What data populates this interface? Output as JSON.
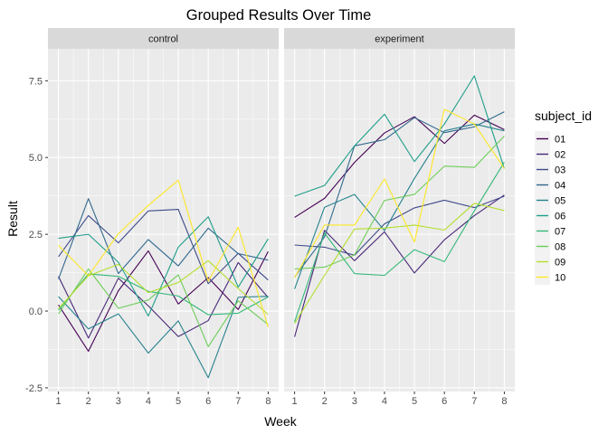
{
  "chart_data": {
    "type": "line",
    "title": "Grouped Results Over Time",
    "xlabel": "Week",
    "ylabel": "Result",
    "x": [
      1,
      2,
      3,
      4,
      5,
      6,
      7,
      8
    ],
    "xlim": [
      0.65,
      8.35
    ],
    "ylim": [
      -2.62,
      8.54
    ],
    "yticks": [
      -2.5,
      0.0,
      2.5,
      5.0,
      7.5
    ],
    "ytick_labels": [
      "-2.5",
      "0.0",
      "2.5",
      "5.0",
      "7.5"
    ],
    "xtick_labels": [
      "1",
      "2",
      "3",
      "4",
      "5",
      "6",
      "7",
      "8"
    ],
    "grid": true,
    "legend": {
      "title": "subject_id",
      "placement": "right",
      "entries": [
        "01",
        "02",
        "03",
        "04",
        "05",
        "06",
        "07",
        "08",
        "09",
        "10"
      ],
      "colors": [
        "#440154",
        "#482878",
        "#3E4A89",
        "#31688E",
        "#26828E",
        "#1F9E89",
        "#35B779",
        "#6DCD59",
        "#B4DE2C",
        "#FDE725"
      ]
    },
    "panels": [
      {
        "label": "control",
        "series": [
          {
            "name": "01",
            "values": [
              0.2,
              -1.31,
              0.66,
              1.96,
              0.23,
              1.09,
              0.05,
              1.94
            ]
          },
          {
            "name": "02",
            "values": [
              1.13,
              -0.88,
              1.07,
              0.17,
              -0.83,
              -0.31,
              1.58,
              0.44
            ]
          },
          {
            "name": "03",
            "values": [
              1.77,
              3.11,
              2.22,
              3.26,
              3.31,
              0.89,
              1.88,
              1.01
            ]
          },
          {
            "name": "04",
            "values": [
              1.04,
              3.66,
              1.22,
              2.33,
              1.47,
              2.7,
              1.87,
              1.66
            ]
          },
          {
            "name": "05",
            "values": [
              0.47,
              -0.58,
              -0.09,
              -1.37,
              -0.32,
              -2.17,
              0.45,
              0.48
            ]
          },
          {
            "name": "06",
            "values": [
              2.37,
              2.5,
              1.59,
              -0.16,
              2.08,
              3.07,
              0.78,
              2.35
            ]
          },
          {
            "name": "07",
            "values": [
              0.03,
              1.21,
              1.13,
              0.64,
              0.49,
              -0.12,
              -0.07,
              0.46
            ]
          },
          {
            "name": "08",
            "values": [
              -0.09,
              1.37,
              0.09,
              0.36,
              1.18,
              -1.16,
              0.33,
              -0.44
            ]
          },
          {
            "name": "09",
            "values": [
              0.08,
              1.15,
              1.52,
              0.6,
              0.93,
              1.64,
              0.73,
              -0.11
            ]
          },
          {
            "name": "10",
            "values": [
              2.14,
              1.15,
              2.52,
              3.44,
              4.26,
              0.97,
              2.73,
              -0.53
            ]
          }
        ]
      },
      {
        "label": "experiment",
        "series": [
          {
            "name": "01",
            "values": [
              3.05,
              3.67,
              4.84,
              5.8,
              6.33,
              5.46,
              6.38,
              5.91
            ]
          },
          {
            "name": "02",
            "values": [
              -0.84,
              2.63,
              1.64,
              2.58,
              1.24,
              2.32,
              3.11,
              3.78
            ]
          },
          {
            "name": "03",
            "values": [
              2.15,
              2.08,
              1.82,
              2.84,
              3.36,
              3.61,
              3.37,
              3.74
            ]
          },
          {
            "name": "04",
            "values": [
              1.11,
              2.41,
              5.38,
              5.58,
              6.3,
              5.81,
              6.0,
              6.49
            ]
          },
          {
            "name": "05",
            "values": [
              0.72,
              3.38,
              3.8,
              2.62,
              4.32,
              5.87,
              6.09,
              5.87
            ]
          },
          {
            "name": "06",
            "values": [
              3.74,
              4.09,
              5.38,
              6.41,
              4.87,
              6.09,
              7.66,
              4.64
            ]
          },
          {
            "name": "07",
            "values": [
              -0.35,
              2.54,
              1.22,
              1.16,
              2.0,
              1.61,
              3.26,
              4.85
            ]
          },
          {
            "name": "08",
            "values": [
              1.37,
              1.43,
              1.83,
              3.6,
              3.8,
              4.72,
              4.68,
              5.7
            ]
          },
          {
            "name": "09",
            "values": [
              -0.4,
              1.16,
              2.67,
              2.7,
              2.8,
              2.64,
              3.51,
              3.27
            ]
          },
          {
            "name": "10",
            "values": [
              1.09,
              2.8,
              2.8,
              4.3,
              2.25,
              6.57,
              6.09,
              4.64
            ]
          }
        ]
      }
    ]
  }
}
